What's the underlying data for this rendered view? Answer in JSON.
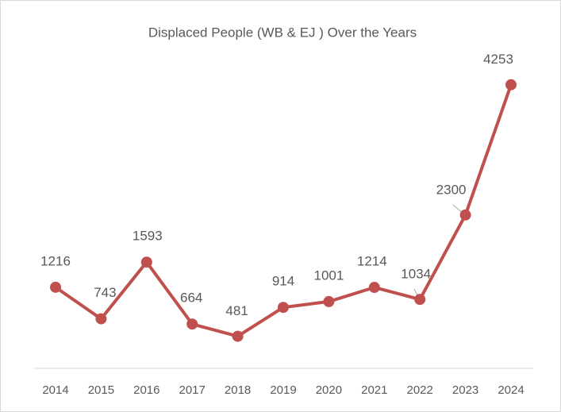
{
  "chart_data": {
    "type": "line",
    "title": "Displaced People (WB & EJ ) Over the Years",
    "categories": [
      "2014",
      "2015",
      "2016",
      "2017",
      "2018",
      "2019",
      "2020",
      "2021",
      "2022",
      "2023",
      "2024"
    ],
    "series": [
      {
        "name": "Displaced People",
        "color": "#c0504d",
        "values": [
          1216,
          743,
          1593,
          664,
          481,
          914,
          1001,
          1214,
          1034,
          2300,
          4253
        ]
      }
    ],
    "ylim": [
      0,
      4500
    ]
  }
}
